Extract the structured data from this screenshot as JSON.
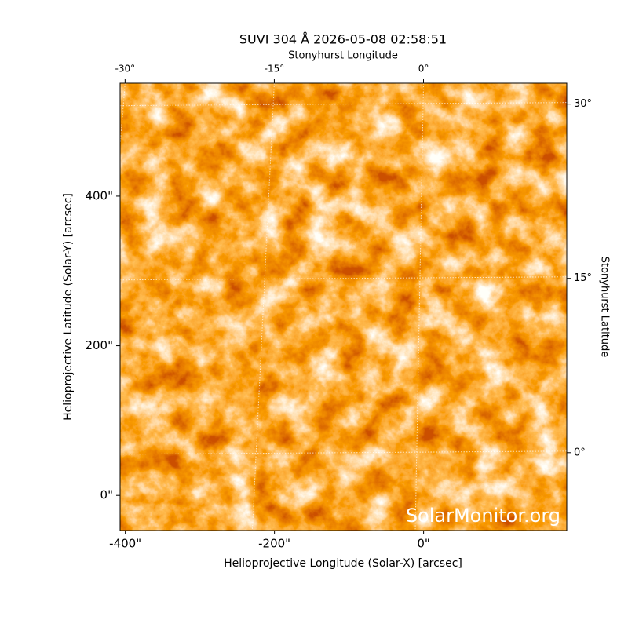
{
  "chart_data": {
    "type": "image",
    "title": "SUVI 304 Å 2026-05-08 02:58:51",
    "x_label": "Helioprojective Longitude (Solar-X) [arcsec]",
    "y_label": "Helioprojective Latitude (Solar-Y) [arcsec]",
    "x2_label": "Stonyhurst Longitude",
    "y2_label": "Stonyhurst Latitude",
    "watermark": "SolarMonitor.org",
    "xlim": [
      -407,
      192
    ],
    "xticks": [
      {
        "value": -400,
        "label": "-400\""
      },
      {
        "value": -200,
        "label": "-200\""
      },
      {
        "value": 0,
        "label": "0\""
      }
    ],
    "ylim": [
      -47,
      551
    ],
    "yticks": [
      {
        "value": 0,
        "label": "0\""
      },
      {
        "value": 200,
        "label": "200\""
      },
      {
        "value": 400,
        "label": "400\""
      }
    ],
    "x2lim": [
      -30.5,
      14.4
    ],
    "x2ticks": [
      {
        "value": -30,
        "label": "-30°"
      },
      {
        "value": -15,
        "label": "-15°"
      },
      {
        "value": 0,
        "label": "0°"
      }
    ],
    "y2lim": [
      -6.7,
      31.8
    ],
    "y2ticks": [
      {
        "value": 0,
        "label": "0°"
      },
      {
        "value": 15,
        "label": "15°"
      },
      {
        "value": 30,
        "label": "30°"
      }
    ],
    "grid": true
  }
}
